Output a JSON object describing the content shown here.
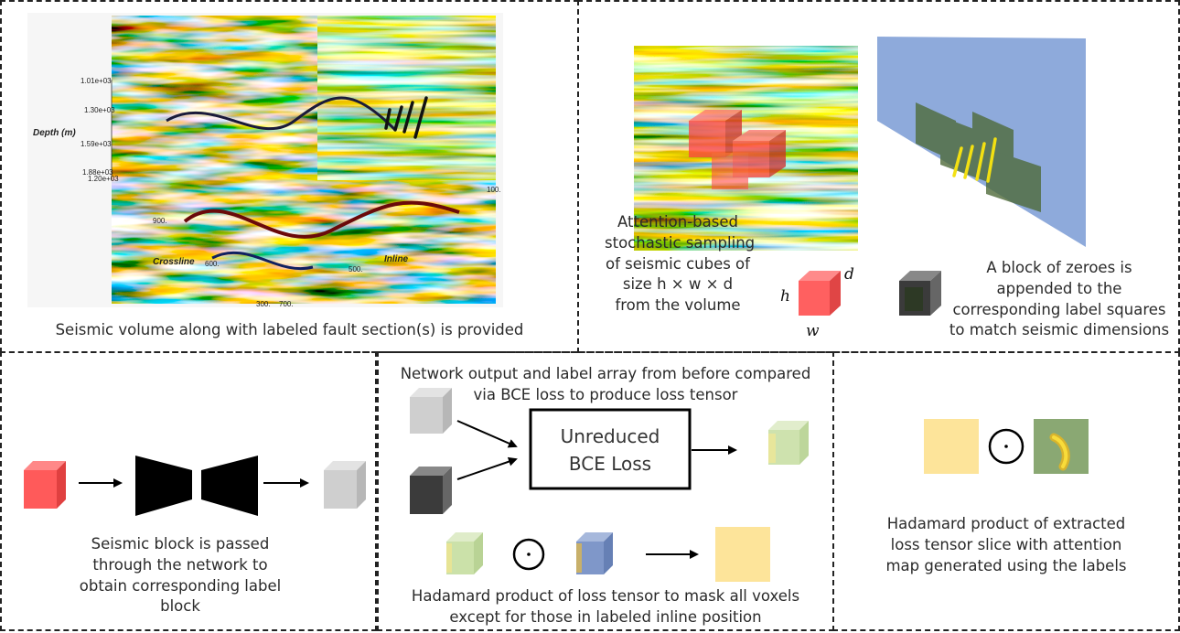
{
  "panel1": {
    "caption": "Seismic volume along with labeled fault section(s) is provided",
    "axis": {
      "depth_label": "Depth (m)",
      "crossline_label": "Crossline",
      "inline_label": "Inline",
      "depth_ticks": [
        "1.01e+03",
        "1.30e+03",
        "1.59e+03",
        "1.88e+03",
        "1.20e+03"
      ],
      "crossline_ticks": [
        "900.",
        "600.",
        "300."
      ],
      "inline_ticks": [
        "100.",
        "500.",
        "700."
      ]
    }
  },
  "panel2": {
    "caption_left": [
      "Attention-based",
      "stochastic sampling",
      "of seismic cubes of",
      "size h × w × d",
      "from the volume"
    ],
    "caption_right": [
      "A block of zeroes is",
      "appended to the",
      "corresponding label squares",
      "to match seismic dimensions"
    ],
    "dim_h": "h",
    "dim_w": "w",
    "dim_d": "d"
  },
  "panel3": {
    "caption": [
      "Seismic block is passed",
      "through the network to",
      "obtain corresponding label",
      "block"
    ]
  },
  "panel4": {
    "top_caption": [
      "Network output and label array from before compared",
      "via BCE loss to produce loss tensor"
    ],
    "box_label": [
      "Unreduced",
      "BCE Loss"
    ],
    "bottom_caption": [
      "Hadamard product of loss tensor to mask all voxels",
      "except for those in labeled inline position"
    ]
  },
  "panel5": {
    "caption": [
      "Hadamard product of extracted",
      "loss tensor slice with attention",
      "map generated using the labels"
    ]
  },
  "colors": {
    "seismic_red": "#e85b5b",
    "label_gray": "#cfcfcf",
    "dark_block": "#3b3b3b",
    "loss_green": "#c6dea0",
    "mask_blue": "#7f97c9",
    "attention_yellow": "#fde49a",
    "attention_green": "#8aa873",
    "plane_blue": "#8eaadb"
  }
}
